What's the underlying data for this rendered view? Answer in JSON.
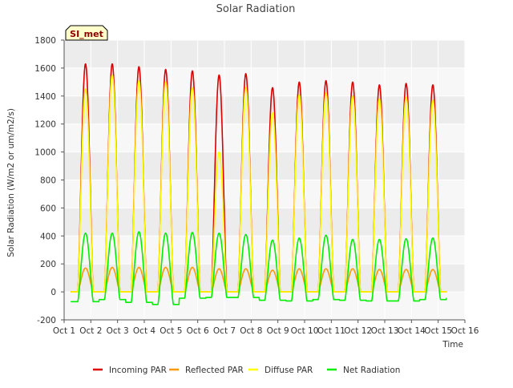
{
  "chart_data": {
    "type": "line",
    "title": "Solar Radiation",
    "xlabel": "Time",
    "ylabel": "Solar Radiation (W/m2 or um/m2/s)",
    "site_label": "SI_met",
    "xlim": [
      1,
      16
    ],
    "ylim": [
      -200,
      1800
    ],
    "x_ticks": [
      {
        "value": 1,
        "label": "Oct 1"
      },
      {
        "value": 2,
        "label": "Oct 2"
      },
      {
        "value": 3,
        "label": "Oct 3"
      },
      {
        "value": 4,
        "label": "Oct 4"
      },
      {
        "value": 5,
        "label": "Oct 5"
      },
      {
        "value": 6,
        "label": "Oct 6"
      },
      {
        "value": 7,
        "label": "Oct 7"
      },
      {
        "value": 8,
        "label": "Oct 8"
      },
      {
        "value": 9,
        "label": "Oct 9"
      },
      {
        "value": 10,
        "label": "Oct 10"
      },
      {
        "value": 11,
        "label": "Oct 11"
      },
      {
        "value": 12,
        "label": "Oct 12"
      },
      {
        "value": 13,
        "label": "Oct 13"
      },
      {
        "value": 14,
        "label": "Oct 14"
      },
      {
        "value": 15,
        "label": "Oct 15"
      },
      {
        "value": 16,
        "label": "Oct 16"
      }
    ],
    "y_ticks": [
      {
        "value": -200,
        "label": "-200"
      },
      {
        "value": 0,
        "label": "0"
      },
      {
        "value": 200,
        "label": "200"
      },
      {
        "value": 400,
        "label": "400"
      },
      {
        "value": 600,
        "label": "600"
      },
      {
        "value": 800,
        "label": "800"
      },
      {
        "value": 1000,
        "label": "1000"
      },
      {
        "value": 1200,
        "label": "1200"
      },
      {
        "value": 1400,
        "label": "1400"
      },
      {
        "value": 1600,
        "label": "1600"
      },
      {
        "value": 1800,
        "label": "1800"
      }
    ],
    "day_centers": [
      1.8,
      2.8,
      3.8,
      4.8,
      5.8,
      6.8,
      7.8,
      8.8,
      9.8,
      10.8,
      11.8,
      12.8,
      13.8,
      14.8
    ],
    "series": [
      {
        "name": "Incoming PAR",
        "color": "#dd0000",
        "daily_peaks": [
          1630,
          1630,
          1610,
          1590,
          1580,
          1550,
          1560,
          1460,
          1500,
          1510,
          1500,
          1480,
          1490,
          1480
        ],
        "night_value": 0
      },
      {
        "name": "Reflected PAR",
        "color": "#ff9900",
        "daily_peaks": [
          170,
          175,
          175,
          175,
          175,
          165,
          165,
          155,
          165,
          165,
          165,
          160,
          160,
          160
        ],
        "night_value": 0
      },
      {
        "name": "Diffuse PAR",
        "color": "#ffff00",
        "daily_peaks": [
          1450,
          1550,
          1510,
          1500,
          1460,
          1000,
          1460,
          1280,
          1410,
          1420,
          1400,
          1380,
          1390,
          1370
        ],
        "night_value": 0
      },
      {
        "name": "Net Radiation",
        "color": "#00ee00",
        "daily_peaks": [
          420,
          420,
          430,
          420,
          425,
          420,
          410,
          370,
          385,
          405,
          375,
          375,
          380,
          385
        ],
        "night_values": [
          -70,
          -55,
          -75,
          -90,
          -45,
          -40,
          -40,
          -60,
          -65,
          -55,
          -60,
          -65,
          -65,
          -55,
          -45
        ]
      }
    ],
    "legend_placement": "bottom"
  }
}
